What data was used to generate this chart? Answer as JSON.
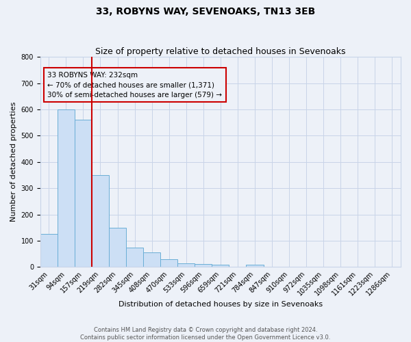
{
  "title": "33, ROBYNS WAY, SEVENOAKS, TN13 3EB",
  "subtitle": "Size of property relative to detached houses in Sevenoaks",
  "xlabel": "Distribution of detached houses by size in Sevenoaks",
  "ylabel": "Number of detached properties",
  "bar_values": [
    125,
    600,
    560,
    350,
    150,
    75,
    55,
    30,
    15,
    12,
    8,
    0,
    8,
    0,
    0,
    0,
    0,
    0,
    0,
    0,
    0
  ],
  "categories": [
    "31sqm",
    "94sqm",
    "157sqm",
    "219sqm",
    "282sqm",
    "345sqm",
    "408sqm",
    "470sqm",
    "533sqm",
    "596sqm",
    "659sqm",
    "721sqm",
    "784sqm",
    "847sqm",
    "910sqm",
    "972sqm",
    "1035sqm",
    "1098sqm",
    "1161sqm",
    "1223sqm",
    "1286sqm"
  ],
  "bar_color": "#ccdff5",
  "bar_edge_color": "#6aaed6",
  "grid_color": "#c8d4e8",
  "background_color": "#edf1f8",
  "red_line_x": 2.5,
  "red_line_color": "#cc0000",
  "annotation_text": "33 ROBYNS WAY: 232sqm\n← 70% of detached houses are smaller (1,371)\n30% of semi-detached houses are larger (579) →",
  "ylim": [
    0,
    800
  ],
  "yticks": [
    0,
    100,
    200,
    300,
    400,
    500,
    600,
    700,
    800
  ],
  "footnote1": "Contains HM Land Registry data © Crown copyright and database right 2024.",
  "footnote2": "Contains public sector information licensed under the Open Government Licence v3.0.",
  "title_fontsize": 10,
  "subtitle_fontsize": 9,
  "axis_label_fontsize": 8,
  "tick_fontsize": 7,
  "annot_fontsize": 7.5
}
